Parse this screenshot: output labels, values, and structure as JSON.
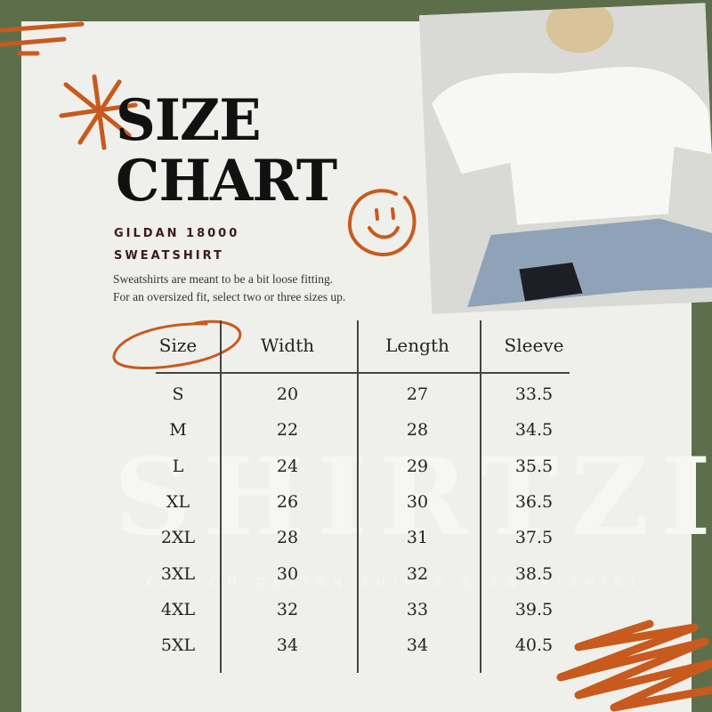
{
  "header": {
    "title_line1": "SIZE",
    "title_line2": "CHART",
    "product_line1": "GILDAN 18000",
    "product_line2": "SWEATSHIRT",
    "description_line1": "Sweatshirts are meant to be a bit loose fitting.",
    "description_line2": "For an oversized fit, select two or three sizes up."
  },
  "watermark": {
    "brand": "SHIRTZI",
    "tagline": "CUSTOM DESIGN SHIRTS & SWEATSHIRT"
  },
  "table": {
    "columns": [
      "Size",
      "Width",
      "Length",
      "Sleeve"
    ],
    "rows": [
      [
        "S",
        "20",
        "27",
        "33.5"
      ],
      [
        "M",
        "22",
        "28",
        "34.5"
      ],
      [
        "L",
        "24",
        "29",
        "35.5"
      ],
      [
        "XL",
        "26",
        "30",
        "36.5"
      ],
      [
        "2XL",
        "28",
        "31",
        "37.5"
      ],
      [
        "3XL",
        "30",
        "32",
        "38.5"
      ],
      [
        "4XL",
        "32",
        "33",
        "39.5"
      ],
      [
        "5XL",
        "34",
        "34",
        "40.5"
      ]
    ]
  },
  "colors": {
    "background": "#5d6f4a",
    "card": "#efefeb",
    "accent": "#c85a1e",
    "text": "#111111"
  },
  "icons": [
    "asterisk-doodle",
    "smiley-doodle",
    "stripes-doodle",
    "scribble-doodle",
    "circle-doodle"
  ]
}
